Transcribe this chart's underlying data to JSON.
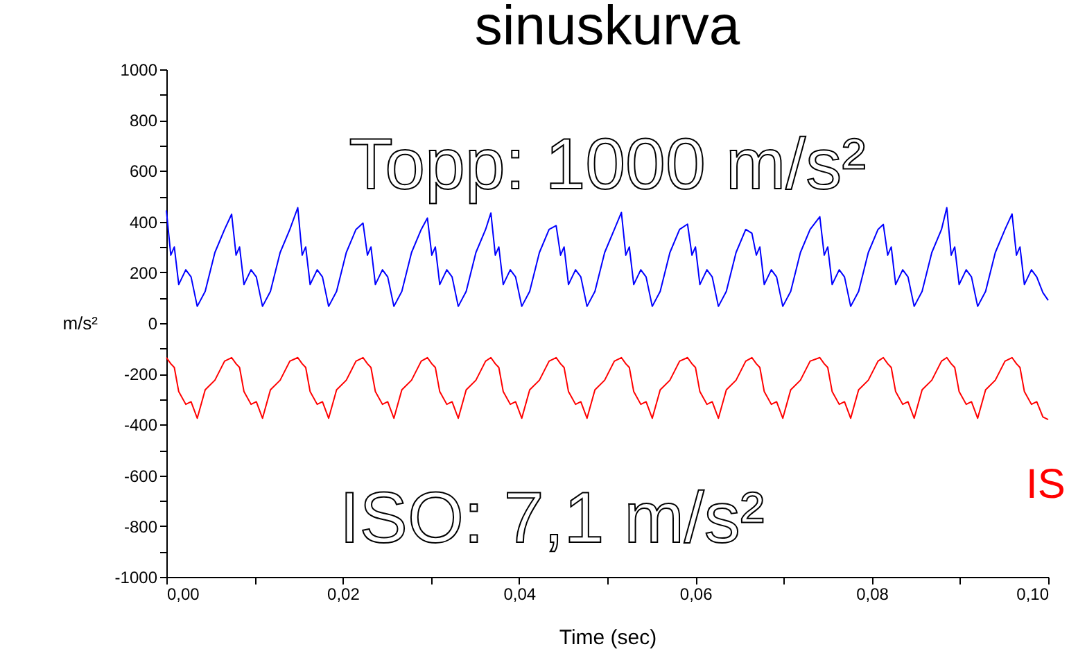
{
  "chart_data": {
    "type": "line",
    "title": "sinuskurva",
    "xlabel": "Time (sec)",
    "ylabel": "m/s²",
    "annotations": [
      "Topp: 1000 m/s²",
      "ISO: 7,1 m/s²",
      "IS"
    ],
    "x": [
      0,
      0.0005,
      0.0009,
      0.0014,
      0.0022,
      0.0028,
      0.0035,
      0.0044,
      0.0055,
      0.0066,
      0.0074,
      0.0079,
      0.0083,
      0.0088,
      0.0096,
      0.0102,
      0.0109,
      0.0118,
      0.0129,
      0.014,
      0.0149,
      0.0154,
      0.0158,
      0.0163,
      0.0171,
      0.0177,
      0.0184,
      0.0193,
      0.0204,
      0.0215,
      0.0223,
      0.0228,
      0.0232,
      0.0237,
      0.0245,
      0.0251,
      0.0258,
      0.0267,
      0.0278,
      0.0289,
      0.0296,
      0.0301,
      0.0305,
      0.031,
      0.0318,
      0.0324,
      0.0331,
      0.034,
      0.0351,
      0.0362,
      0.0368,
      0.0373,
      0.0377,
      0.0382,
      0.039,
      0.0396,
      0.0403,
      0.0412,
      0.0423,
      0.0434,
      0.0442,
      0.0447,
      0.0451,
      0.0456,
      0.0464,
      0.047,
      0.0477,
      0.0486,
      0.0497,
      0.0508,
      0.0516,
      0.0521,
      0.0525,
      0.053,
      0.0538,
      0.0544,
      0.0551,
      0.056,
      0.0571,
      0.0582,
      0.0591,
      0.0596,
      0.06,
      0.0605,
      0.0613,
      0.0619,
      0.0626,
      0.0635,
      0.0646,
      0.0657,
      0.0664,
      0.0669,
      0.0673,
      0.0678,
      0.0686,
      0.0692,
      0.0699,
      0.0708,
      0.0719,
      0.073,
      0.0741,
      0.0746,
      0.075,
      0.0755,
      0.0763,
      0.0769,
      0.0776,
      0.0785,
      0.0796,
      0.0807,
      0.0813,
      0.0818,
      0.0822,
      0.0827,
      0.0835,
      0.0841,
      0.0848,
      0.0857,
      0.0868,
      0.0879,
      0.0885,
      0.089,
      0.0894,
      0.0899,
      0.0907,
      0.0913,
      0.092,
      0.0929,
      0.094,
      0.0951,
      0.0959,
      0.0964,
      0.0968,
      0.0973,
      0.0981,
      0.0987,
      0.0994,
      0.1
    ],
    "series": [
      {
        "color": "#0000ff",
        "values": [
          444,
          268,
          300,
          152,
          210,
          182,
          66,
          125,
          278,
          369,
          429,
          268,
          300,
          152,
          210,
          182,
          66,
          125,
          278,
          369,
          455,
          268,
          300,
          152,
          210,
          182,
          66,
          125,
          278,
          369,
          394,
          268,
          300,
          152,
          210,
          182,
          66,
          125,
          278,
          369,
          414,
          268,
          300,
          152,
          210,
          182,
          66,
          125,
          278,
          369,
          434,
          268,
          300,
          152,
          210,
          182,
          66,
          125,
          278,
          369,
          384,
          268,
          300,
          152,
          210,
          182,
          66,
          125,
          278,
          369,
          436,
          268,
          300,
          152,
          210,
          182,
          66,
          125,
          278,
          369,
          390,
          268,
          300,
          152,
          210,
          182,
          66,
          125,
          278,
          369,
          354,
          268,
          300,
          152,
          210,
          182,
          66,
          125,
          278,
          369,
          419,
          268,
          300,
          152,
          210,
          182,
          66,
          125,
          278,
          369,
          389,
          268,
          300,
          152,
          210,
          182,
          66,
          125,
          278,
          369,
          455,
          268,
          300,
          152,
          210,
          182,
          66,
          125,
          278,
          369,
          430,
          268,
          300,
          152,
          210,
          182,
          120,
          90
        ]
      },
      {
        "color": "#ff0000",
        "values": [
          -136,
          -160,
          -175,
          -270,
          -320,
          -310,
          -375,
          -263,
          -225,
          -150,
          -136,
          -160,
          -175,
          -270,
          -320,
          -310,
          -375,
          -263,
          -225,
          -150,
          -136,
          -160,
          -175,
          -270,
          -320,
          -310,
          -375,
          -263,
          -225,
          -150,
          -136,
          -160,
          -175,
          -270,
          -320,
          -310,
          -375,
          -263,
          -225,
          -150,
          -136,
          -160,
          -175,
          -270,
          -320,
          -310,
          -375,
          -263,
          -225,
          -150,
          -136,
          -160,
          -175,
          -270,
          -320,
          -310,
          -375,
          -263,
          -225,
          -150,
          -136,
          -160,
          -175,
          -270,
          -320,
          -310,
          -375,
          -263,
          -225,
          -150,
          -136,
          -160,
          -175,
          -270,
          -320,
          -310,
          -375,
          -263,
          -225,
          -150,
          -136,
          -160,
          -175,
          -270,
          -320,
          -310,
          -375,
          -263,
          -225,
          -150,
          -136,
          -160,
          -175,
          -270,
          -320,
          -310,
          -375,
          -263,
          -225,
          -150,
          -136,
          -160,
          -175,
          -270,
          -320,
          -310,
          -375,
          -263,
          -225,
          -150,
          -136,
          -160,
          -175,
          -270,
          -320,
          -310,
          -375,
          -263,
          -225,
          -150,
          -136,
          -160,
          -175,
          -270,
          -320,
          -310,
          -375,
          -263,
          -225,
          -150,
          -136,
          -160,
          -175,
          -270,
          -320,
          -310,
          -370,
          -380
        ]
      }
    ],
    "xlim": [
      0,
      0.1
    ],
    "xticks": [
      {
        "value": 0,
        "label": "0,00"
      },
      {
        "value": 0.01,
        "label": null
      },
      {
        "value": 0.02,
        "label": "0,02"
      },
      {
        "value": 0.03,
        "label": null
      },
      {
        "value": 0.04,
        "label": "0,04"
      },
      {
        "value": 0.05,
        "label": null
      },
      {
        "value": 0.06,
        "label": "0,06"
      },
      {
        "value": 0.07,
        "label": null
      },
      {
        "value": 0.08,
        "label": "0,08"
      },
      {
        "value": 0.09,
        "label": null
      },
      {
        "value": 0.1,
        "label": "0,10"
      }
    ],
    "ylim": [
      -1000,
      1000
    ],
    "yticks": [
      -1000,
      {
        "value": -900,
        "label": null
      },
      -800,
      {
        "value": -700,
        "label": null
      },
      -600,
      {
        "value": -500,
        "label": null
      },
      -400,
      {
        "value": -300,
        "label": null
      },
      -200,
      {
        "value": -100,
        "label": null
      },
      0,
      {
        "value": 100,
        "label": null
      },
      200,
      {
        "value": 300,
        "label": null
      },
      400,
      {
        "value": 500,
        "label": null
      },
      600,
      {
        "value": 700,
        "label": null
      },
      800,
      {
        "value": 900,
        "label": null
      },
      1000
    ],
    "grid": false,
    "legend": false,
    "marker": "none",
    "line_style": "solid"
  }
}
